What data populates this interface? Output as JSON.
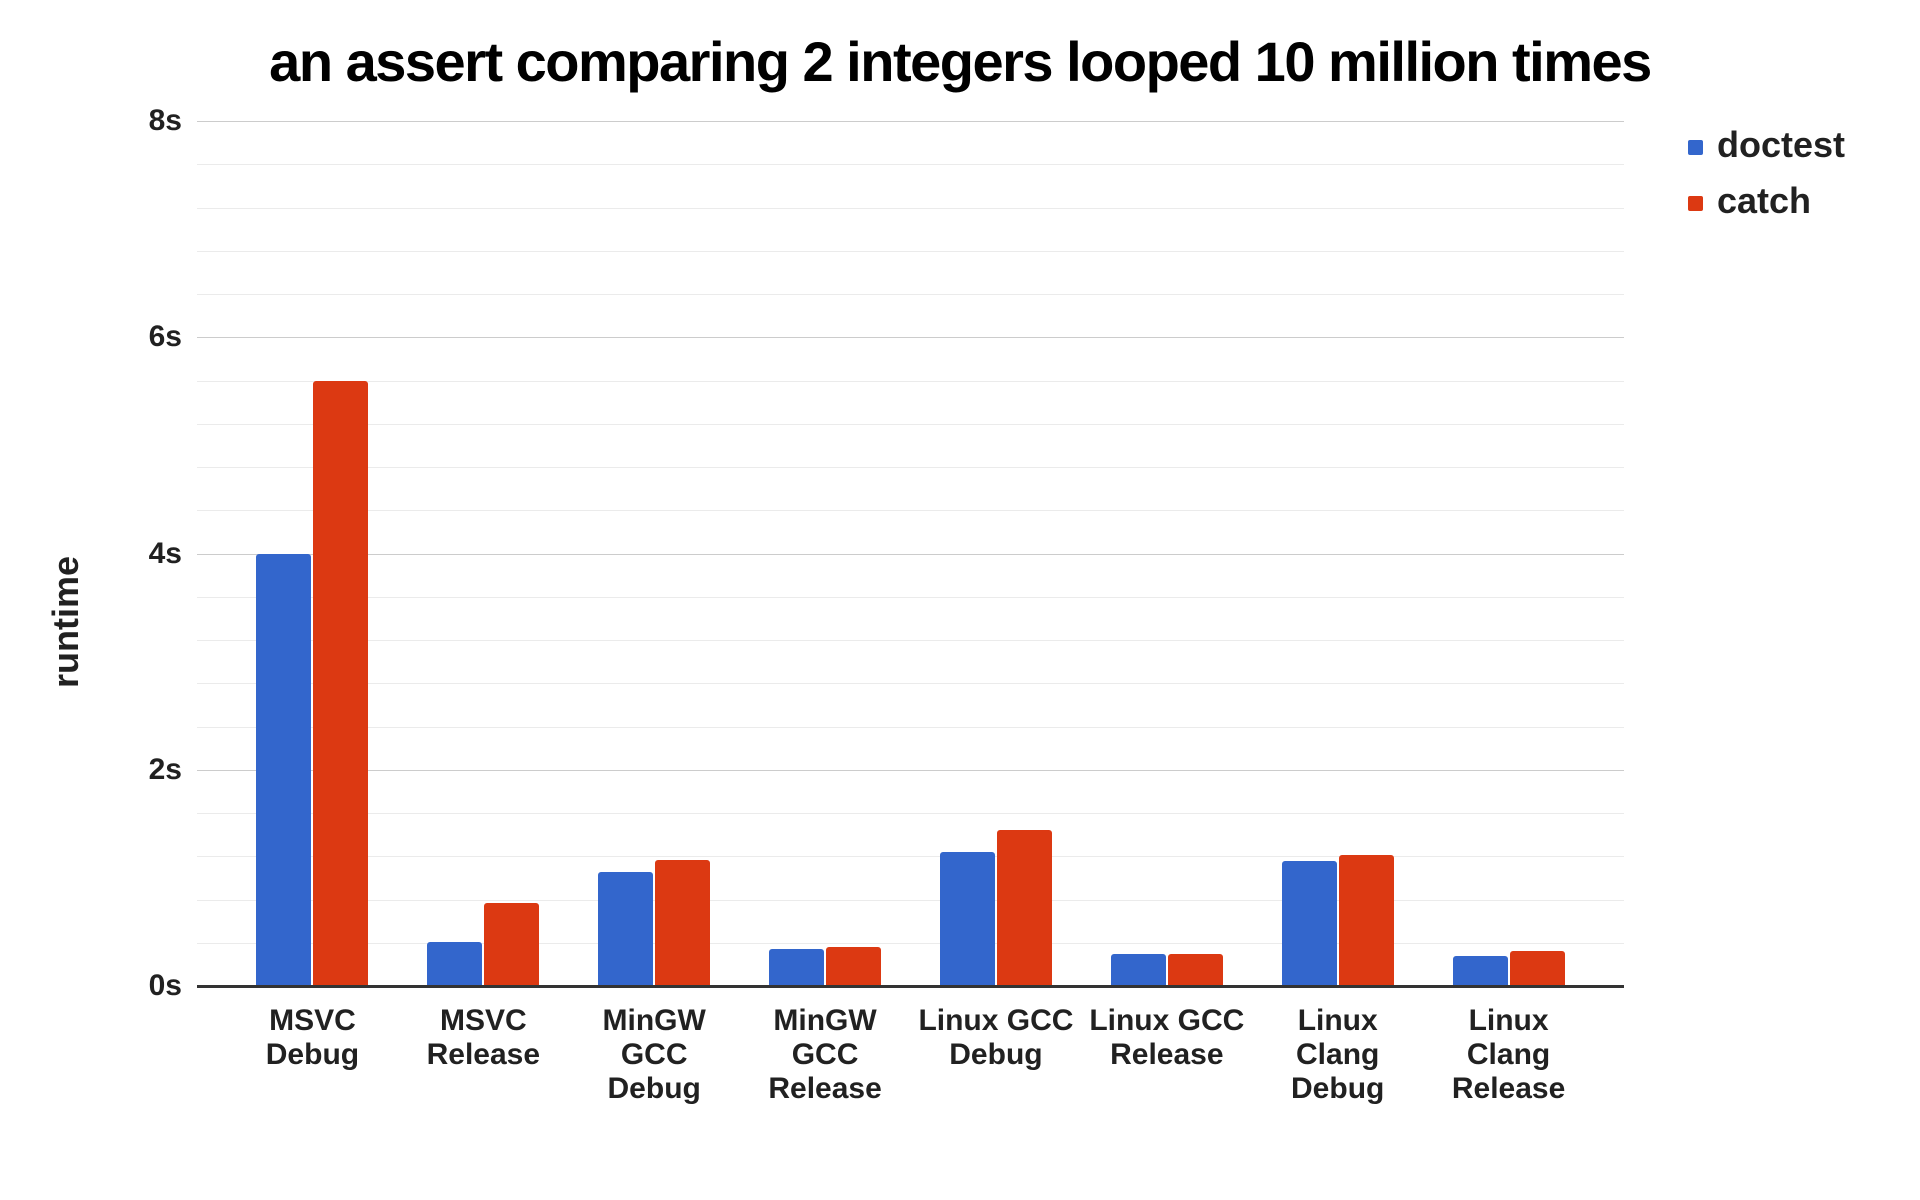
{
  "chart_data": {
    "type": "bar",
    "title": "an assert comparing 2 integers looped 10 million times",
    "ylabel": "runtime",
    "xlabel": "",
    "categories": [
      "MSVC\nDebug",
      "MSVC\nRelease",
      "MinGW GCC\nDebug",
      "MinGW GCC\nRelease",
      "Linux GCC\nDebug",
      "Linux GCC\nRelease",
      "Linux Clang\nDebug",
      "Linux Clang\nRelease"
    ],
    "series": [
      {
        "name": "doctest",
        "color": "#3366CC",
        "values": [
          4.0,
          0.41,
          1.05,
          0.34,
          1.24,
          0.3,
          1.16,
          0.28
        ]
      },
      {
        "name": "catch",
        "color": "#DC3912",
        "values": [
          5.6,
          0.77,
          1.17,
          0.36,
          1.44,
          0.3,
          1.21,
          0.32
        ]
      }
    ],
    "ylim": [
      0,
      8
    ],
    "ytick_step": 2,
    "minor_tick_step": 0.4,
    "ytick_labels_top_to_bottom": [
      "8s",
      "6s",
      "4s",
      "2s",
      "0s"
    ],
    "grid": true,
    "legend_position": "top-right",
    "colors": {
      "major_gridline": "#cccccc",
      "minor_gridline": "#ebebeb",
      "axis_line": "#333333",
      "title_text": "#000000",
      "label_text": "#212121",
      "background": "#ffffff"
    }
  }
}
